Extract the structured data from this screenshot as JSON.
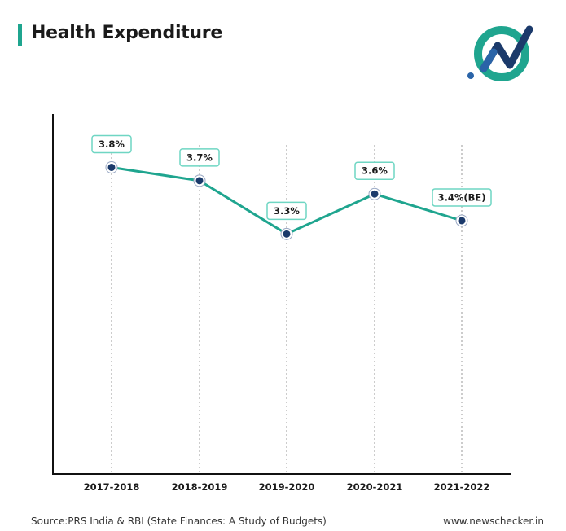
{
  "header": {
    "title": "Health Expenditure",
    "accent_color": "#1fa58f",
    "logo_icon": "newschecker-logo-icon"
  },
  "chart_data": {
    "type": "line",
    "title": "Health Expenditure",
    "xlabel": "",
    "ylabel": "",
    "categories": [
      "2017-2018",
      "2018-2019",
      "2019-2020",
      "2020-2021",
      "2021-2022"
    ],
    "values": [
      3.8,
      3.7,
      3.3,
      3.6,
      3.4
    ],
    "data_labels": [
      "3.8%",
      "3.7%",
      "3.3%",
      "3.6%",
      "3.4%(BE)"
    ],
    "ylim": [
      1.5,
      4.2
    ],
    "grid": "vertical-dotted",
    "line_color": "#1fa58f",
    "marker_color": "#1b3a6b",
    "label_border_color": "#6fd6c3"
  },
  "footer": {
    "source": "Source:PRS India & RBI (State Finances: A Study of Budgets)",
    "site": "www.newschecker.in"
  }
}
